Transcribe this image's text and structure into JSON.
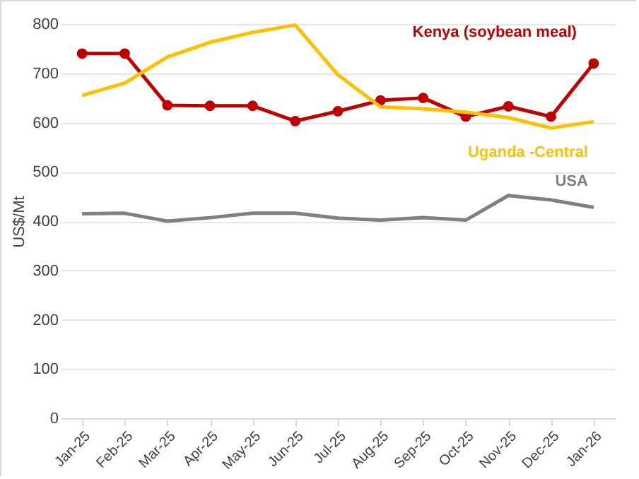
{
  "chart_data": {
    "type": "line",
    "ylabel": "US$/Mt",
    "categories": [
      "Jan-25",
      "Feb-25",
      "Mar-25",
      "Apr-25",
      "May-25",
      "Jun-25",
      "Jul-25",
      "Aug-25",
      "Sep-25",
      "Oct-25",
      "Nov-25",
      "Dec-25",
      "Jan-26"
    ],
    "series": [
      {
        "name": "Kenya (soybean meal)",
        "color": "#c00000",
        "marker": "circle",
        "values": [
          740,
          740,
          635,
          634,
          634,
          603,
          623,
          645,
          650,
          612,
          633,
          612,
          720
        ]
      },
      {
        "name": "Uganda -Central",
        "color": "#ffc000",
        "values": [
          655,
          680,
          733,
          763,
          783,
          798,
          697,
          632,
          628,
          621,
          610,
          589,
          602
        ]
      },
      {
        "name": "USA",
        "color": "#808080",
        "values": [
          415,
          416,
          400,
          407,
          416,
          416,
          406,
          402,
          407,
          402,
          452,
          443,
          428
        ]
      }
    ],
    "ylim": [
      0,
      800
    ],
    "yticks": [
      0,
      100,
      200,
      300,
      400,
      500,
      600,
      700,
      800
    ],
    "grid": "y",
    "line_style": "solid"
  }
}
